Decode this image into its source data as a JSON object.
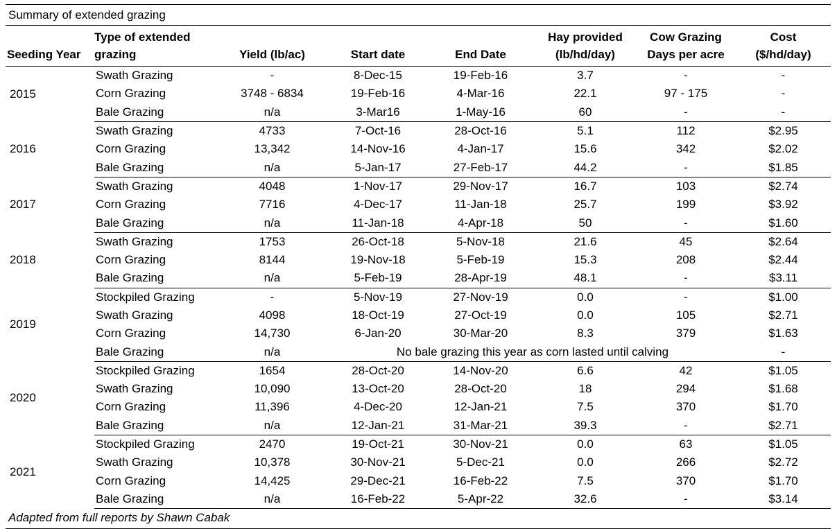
{
  "title": "Summary of extended grazing",
  "headers": {
    "seeding_year": "Seeding Year",
    "type_line1": "Type of extended",
    "type_line2": "grazing",
    "yield": "Yield (lb/ac)",
    "start": "Start date",
    "end": "End Date",
    "hay_line1": "Hay provided",
    "hay_line2": "(lb/hd/day)",
    "cow_line1": "Cow Grazing",
    "cow_line2": "Days per acre",
    "cost_line1": "Cost",
    "cost_line2": "($/hd/day)"
  },
  "groups": [
    {
      "year": "2015",
      "rows": [
        {
          "type": "Swath Grazing",
          "yield": "-",
          "start": "8-Dec-15",
          "end": "19-Feb-16",
          "hay": "3.7",
          "cow_days": "-",
          "cost": "-"
        },
        {
          "type": "Corn Grazing",
          "yield": "3748 - 6834",
          "start": "19-Feb-16",
          "end": "4-Mar-16",
          "hay": "22.1",
          "cow_days": "97 - 175",
          "cost": "-"
        },
        {
          "type": "Bale Grazing",
          "yield": "n/a",
          "start": "3-Mar16",
          "end": "1-May-16",
          "hay": "60",
          "cow_days": "-",
          "cost": "-"
        }
      ]
    },
    {
      "year": "2016",
      "rows": [
        {
          "type": "Swath Grazing",
          "yield": "4733",
          "start": "7-Oct-16",
          "end": "28-Oct-16",
          "hay": "5.1",
          "cow_days": "112",
          "cost": "$2.95"
        },
        {
          "type": "Corn Grazing",
          "yield": "13,342",
          "start": "14-Nov-16",
          "end": "4-Jan-17",
          "hay": "15.6",
          "cow_days": "342",
          "cost": "$2.02"
        },
        {
          "type": "Bale Grazing",
          "yield": "n/a",
          "start": "5-Jan-17",
          "end": "27-Feb-17",
          "hay": "44.2",
          "cow_days": "-",
          "cost": "$1.85"
        }
      ]
    },
    {
      "year": "2017",
      "rows": [
        {
          "type": "Swath Grazing",
          "yield": "4048",
          "start": "1-Nov-17",
          "end": "29-Nov-17",
          "hay": "16.7",
          "cow_days": "103",
          "cost": "$2.74"
        },
        {
          "type": "Corn Grazing",
          "yield": "7716",
          "start": "4-Dec-17",
          "end": "11-Jan-18",
          "hay": "25.7",
          "cow_days": "199",
          "cost": "$3.92"
        },
        {
          "type": "Bale Grazing",
          "yield": "n/a",
          "start": "11-Jan-18",
          "end": "4-Apr-18",
          "hay": "50",
          "cow_days": "-",
          "cost": "$1.60"
        }
      ]
    },
    {
      "year": "2018",
      "rows": [
        {
          "type": "Swath Grazing",
          "yield": "1753",
          "start": "26-Oct-18",
          "end": "5-Nov-18",
          "hay": "21.6",
          "cow_days": "45",
          "cost": "$2.64"
        },
        {
          "type": "Corn Grazing",
          "yield": "8144",
          "start": "19-Nov-18",
          "end": "5-Feb-19",
          "hay": "15.3",
          "cow_days": "208",
          "cost": "$2.44"
        },
        {
          "type": "Bale Grazing",
          "yield": "n/a",
          "start": "5-Feb-19",
          "end": "28-Apr-19",
          "hay": "48.1",
          "cow_days": "-",
          "cost": "$3.11"
        }
      ]
    },
    {
      "year": "2019",
      "rows": [
        {
          "type": "Stockpiled Grazing",
          "yield": "-",
          "start": "5-Nov-19",
          "end": "27-Nov-19",
          "hay": "0.0",
          "cow_days": "-",
          "cost": "$1.00"
        },
        {
          "type": "Swath Grazing",
          "yield": "4098",
          "start": "18-Oct-19",
          "end": "27-Oct-19",
          "hay": "0.0",
          "cow_days": "105",
          "cost": "$2.71"
        },
        {
          "type": "Corn Grazing",
          "yield": "14,730",
          "start": "6-Jan-20",
          "end": "30-Mar-20",
          "hay": "8.3",
          "cow_days": "379",
          "cost": "$1.63"
        },
        {
          "type": "Bale Grazing",
          "yield": "n/a",
          "note": "No bale grazing this year as corn lasted until calving",
          "cost": "-"
        }
      ]
    },
    {
      "year": "2020",
      "rows": [
        {
          "type": "Stockpiled Grazing",
          "yield": "1654",
          "start": "28-Oct-20",
          "end": "14-Nov-20",
          "hay": "6.6",
          "cow_days": "42",
          "cost": "$1.05"
        },
        {
          "type": "Swath Grazing",
          "yield": "10,090",
          "start": "13-Oct-20",
          "end": "28-Oct-20",
          "hay": "18",
          "cow_days": "294",
          "cost": "$1.68"
        },
        {
          "type": "Corn Grazing",
          "yield": "11,396",
          "start": "4-Dec-20",
          "end": "12-Jan-21",
          "hay": "7.5",
          "cow_days": "370",
          "cost": "$1.70"
        },
        {
          "type": "Bale Grazing",
          "yield": "n/a",
          "start": "12-Jan-21",
          "end": "31-Mar-21",
          "hay": "39.3",
          "cow_days": "-",
          "cost": "$2.71"
        }
      ]
    },
    {
      "year": "2021",
      "rows": [
        {
          "type": "Stockpiled Grazing",
          "yield": "2470",
          "start": "19-Oct-21",
          "end": "30-Nov-21",
          "hay": "0.0",
          "cow_days": "63",
          "cost": "$1.05"
        },
        {
          "type": "Swath Grazing",
          "yield": "10,378",
          "start": "30-Nov-21",
          "end": "5-Dec-21",
          "hay": "0.0",
          "cow_days": "266",
          "cost": "$2.72"
        },
        {
          "type": "Corn Grazing",
          "yield": "14,425",
          "start": "29-Dec-21",
          "end": "16-Feb-22",
          "hay": "7.5",
          "cow_days": "370",
          "cost": "$1.70"
        },
        {
          "type": "Bale Grazing",
          "yield": "n/a",
          "start": "16-Feb-22",
          "end": "5-Apr-22",
          "hay": "32.6",
          "cow_days": "-",
          "cost": "$3.14"
        }
      ]
    }
  ],
  "footnote": "Adapted from full reports by Shawn Cabak"
}
